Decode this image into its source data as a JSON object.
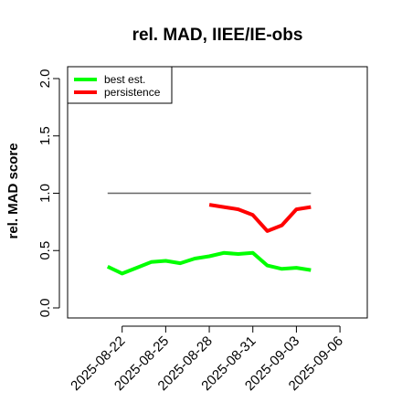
{
  "chart_data": {
    "type": "line",
    "title": "rel. MAD, IIEE/IE-obs",
    "xlabel": "",
    "ylabel": "rel. MAD score",
    "ylim": [
      0.0,
      2.0
    ],
    "yticks": [
      "0.0",
      "0.5",
      "1.0",
      "1.5",
      "2.0"
    ],
    "xlim": [
      "2025-08-19",
      "2025-09-07"
    ],
    "xticks": [
      "2025-08-22",
      "2025-08-25",
      "2025-08-28",
      "2025-08-31",
      "2025-09-03",
      "2025-09-06"
    ],
    "legend_position": "top-left",
    "grid": false,
    "reference_line": {
      "y": 1.0,
      "x": [
        "2025-08-21",
        "2025-09-04"
      ],
      "color": "#666666"
    },
    "series": [
      {
        "name": "best est.",
        "color": "#00ff00",
        "x": [
          "2025-08-21",
          "2025-08-22",
          "2025-08-23",
          "2025-08-24",
          "2025-08-25",
          "2025-08-26",
          "2025-08-27",
          "2025-08-28",
          "2025-08-29",
          "2025-08-30",
          "2025-08-31",
          "2025-09-01",
          "2025-09-02",
          "2025-09-03",
          "2025-09-04"
        ],
        "values": [
          0.36,
          0.3,
          0.35,
          0.4,
          0.41,
          0.39,
          0.43,
          0.45,
          0.48,
          0.47,
          0.48,
          0.37,
          0.34,
          0.35,
          0.33
        ]
      },
      {
        "name": "persistence",
        "color": "#ff0000",
        "x": [
          "2025-08-28",
          "2025-08-29",
          "2025-08-30",
          "2025-08-31",
          "2025-09-01",
          "2025-09-02",
          "2025-09-03",
          "2025-09-04"
        ],
        "values": [
          0.9,
          0.88,
          0.86,
          0.81,
          0.67,
          0.72,
          0.86,
          0.88
        ]
      }
    ]
  }
}
